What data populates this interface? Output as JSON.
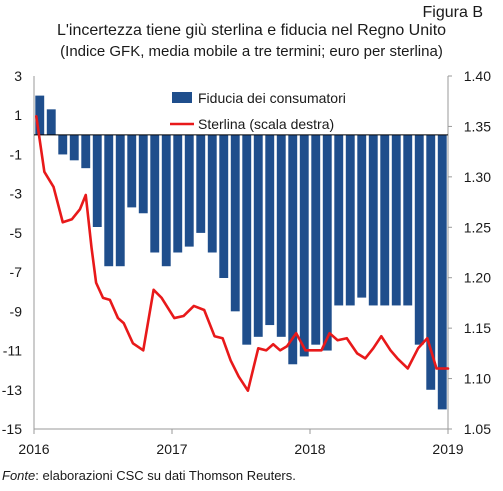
{
  "figure_label": "Figura B",
  "source": {
    "prefix": "Fonte",
    "text": ": elaborazioni CSC su dati Thomson Reuters."
  },
  "colors": {
    "bars": "#1f4e8c",
    "line": "#e8191a",
    "axis": "#9a9a9a"
  },
  "chart_data": {
    "type": "bar",
    "title": "L'incertezza tiene giù sterlina e fiducia nel Regno Unito",
    "subtitle": "(Indice GFK, media mobile a tre termini; euro per sterlina)",
    "y_left": {
      "lim": [
        -15,
        3
      ],
      "ticks": [
        "3",
        "1",
        "-1",
        "-3",
        "-5",
        "-7",
        "-9",
        "-11",
        "-13",
        "-15"
      ]
    },
    "y_right": {
      "lim": [
        1.05,
        1.4
      ],
      "ticks": [
        "1.40",
        "1.35",
        "1.30",
        "1.25",
        "1.20",
        "1.15",
        "1.10",
        "1.05"
      ]
    },
    "x_ticks": [
      "2016",
      "2017",
      "2018",
      "2019"
    ],
    "series": [
      {
        "name": "Fiducia dei consumatori",
        "kind": "bar",
        "axis": "left",
        "values": [
          2,
          1.3,
          -1,
          -1.3,
          -1.7,
          -4.7,
          -6.7,
          -6.7,
          -3.7,
          -4,
          -6,
          -6.7,
          -6,
          -5.7,
          -5,
          -6,
          -7.3,
          -9,
          -10.7,
          -10.3,
          -9.7,
          -10.3,
          -11.7,
          -11.3,
          -10.7,
          -11,
          -8.7,
          -8.7,
          -8.3,
          -8.7,
          -8.7,
          -8.7,
          -8.7,
          -10.7,
          -13,
          -14
        ]
      },
      {
        "name": "Sterlina (scala destra)",
        "kind": "line",
        "axis": "right",
        "points": [
          [
            0.2,
            1.36
          ],
          [
            0.9,
            1.305
          ],
          [
            1.7,
            1.29
          ],
          [
            2.5,
            1.255
          ],
          [
            3.3,
            1.258
          ],
          [
            4.0,
            1.268
          ],
          [
            4.5,
            1.282
          ],
          [
            5.0,
            1.23
          ],
          [
            5.4,
            1.195
          ],
          [
            6.0,
            1.18
          ],
          [
            6.6,
            1.178
          ],
          [
            7.3,
            1.16
          ],
          [
            7.8,
            1.155
          ],
          [
            8.6,
            1.135
          ],
          [
            9.5,
            1.128
          ],
          [
            10.4,
            1.188
          ],
          [
            11.1,
            1.18
          ],
          [
            12.2,
            1.16
          ],
          [
            13.0,
            1.162
          ],
          [
            13.9,
            1.172
          ],
          [
            14.8,
            1.168
          ],
          [
            15.7,
            1.142
          ],
          [
            16.4,
            1.14
          ],
          [
            17.1,
            1.118
          ],
          [
            17.8,
            1.102
          ],
          [
            18.6,
            1.088
          ],
          [
            19.5,
            1.13
          ],
          [
            20.2,
            1.128
          ],
          [
            20.8,
            1.134
          ],
          [
            21.4,
            1.128
          ],
          [
            22.0,
            1.132
          ],
          [
            22.8,
            1.145
          ],
          [
            23.6,
            1.128
          ],
          [
            24.3,
            1.128
          ],
          [
            25.0,
            1.128
          ],
          [
            25.7,
            1.145
          ],
          [
            26.4,
            1.138
          ],
          [
            27.2,
            1.14
          ],
          [
            28.1,
            1.125
          ],
          [
            28.8,
            1.12
          ],
          [
            29.5,
            1.13
          ],
          [
            30.2,
            1.142
          ],
          [
            31.0,
            1.128
          ],
          [
            31.6,
            1.12
          ],
          [
            32.5,
            1.11
          ],
          [
            33.4,
            1.13
          ],
          [
            34.2,
            1.14
          ],
          [
            35.0,
            1.11
          ],
          [
            36.0,
            1.11
          ]
        ]
      }
    ]
  }
}
